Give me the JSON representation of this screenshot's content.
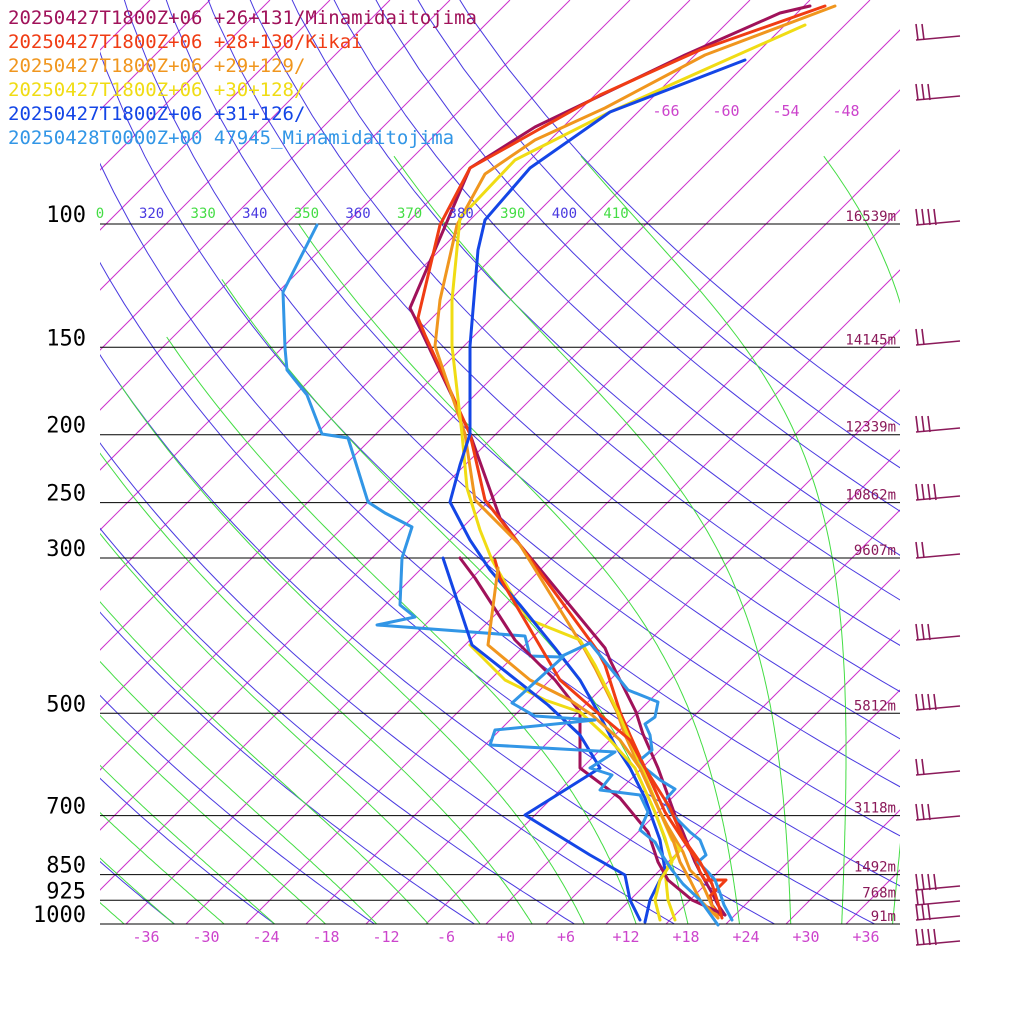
{
  "legend": [
    {
      "label": "20250427T1800Z+06 +26+131/Minamidaitojima",
      "color": "#a0125a"
    },
    {
      "label": "20250427T1800Z+06 +28+130/Kikai",
      "color": "#f03c14"
    },
    {
      "label": "20250427T1800Z+06 +29+129/",
      "color": "#f0961e"
    },
    {
      "label": "20250427T1800Z+06 +30+128/",
      "color": "#f0dc14"
    },
    {
      "label": "20250427T1800Z+06 +31+126/",
      "color": "#1446e6"
    },
    {
      "label": "20250428T0000Z+00 47945_Minamidaitojima",
      "color": "#3296e6"
    }
  ],
  "chart_data": {
    "type": "line",
    "xlabel": "",
    "ylabel": "",
    "pressure_levels": [
      {
        "p": 100,
        "label": "100",
        "height": "16539m"
      },
      {
        "p": 150,
        "label": "150",
        "height": "14145m"
      },
      {
        "p": 200,
        "label": "200",
        "height": "12339m"
      },
      {
        "p": 250,
        "label": "250",
        "height": "10862m"
      },
      {
        "p": 300,
        "label": "300",
        "height": "9607m"
      },
      {
        "p": 500,
        "label": "500",
        "height": "5812m"
      },
      {
        "p": 700,
        "label": "700",
        "height": "3118m"
      },
      {
        "p": 850,
        "label": "850",
        "height": "1492m"
      },
      {
        "p": 925,
        "label": "925",
        "height": "768m"
      },
      {
        "p": 1000,
        "label": "1000",
        "height": "91m"
      }
    ],
    "temperature_ticks": [
      "-36",
      "-30",
      "-24",
      "-18",
      "-12",
      "-6",
      "+0",
      "+6",
      "+12",
      "+18",
      "+24",
      "+30",
      "+36"
    ],
    "theta_labels": [
      "0",
      "320",
      "330",
      "340",
      "350",
      "360",
      "370",
      "380",
      "390",
      "400",
      "410"
    ],
    "mixing_ratio_labels": [
      "-66",
      "-60",
      "-54",
      "-48"
    ],
    "colors": {
      "isotherm": "#cc33cc",
      "dry_adiabat": "#4a3ae0",
      "moist_adiabat": "#44dd44",
      "isobar": "#000000",
      "wind_barb": "#8b1a5a"
    },
    "series": [
      {
        "name": "20250427T1800Z+06 +26+131/Minamidaitojima",
        "color": "#a0125a",
        "points": [
          [
            2,
            7
          ],
          [
            810,
            6
          ],
          [
            780,
            13
          ],
          [
            685,
            55
          ],
          [
            535,
            127
          ],
          [
            470,
            168
          ],
          [
            410,
            308
          ],
          [
            415,
            318
          ],
          [
            470,
            434
          ],
          [
            500,
            518
          ],
          [
            520,
            545
          ],
          [
            605,
            648
          ],
          [
            610,
            660
          ],
          [
            636,
            712
          ],
          [
            643,
            734
          ],
          [
            658,
            768
          ],
          [
            675,
            815
          ],
          [
            682,
            830
          ],
          [
            695,
            862
          ],
          [
            700,
            872
          ],
          [
            712,
            893
          ],
          [
            718,
            905
          ],
          [
            725,
            915
          ]
        ]
      },
      {
        "name": "20250427T1800Z+06 +28+130/Kikai",
        "color": "#f03c14",
        "points": [
          [
            2,
            7
          ],
          [
            825,
            6
          ],
          [
            700,
            50
          ],
          [
            600,
            95
          ],
          [
            520,
            140
          ],
          [
            470,
            168
          ],
          [
            440,
            225
          ],
          [
            418,
            318
          ],
          [
            425,
            335
          ],
          [
            470,
            434
          ],
          [
            485,
            500
          ],
          [
            520,
            545
          ],
          [
            597,
            650
          ],
          [
            605,
            665
          ],
          [
            620,
            712
          ],
          [
            630,
            735
          ],
          [
            645,
            768
          ],
          [
            665,
            812
          ],
          [
            695,
            858
          ],
          [
            700,
            872
          ],
          [
            705,
            880
          ],
          [
            726,
            880
          ],
          [
            710,
            896
          ],
          [
            712,
            905
          ],
          [
            720,
            915
          ]
        ]
      },
      {
        "name": "20250427T1800Z+06 +29+129/",
        "color": "#f0961e",
        "points": [
          [
            2,
            7
          ],
          [
            835,
            6
          ],
          [
            705,
            55
          ],
          [
            605,
            108
          ],
          [
            535,
            140
          ],
          [
            485,
            174
          ],
          [
            457,
            225
          ],
          [
            440,
            300
          ],
          [
            435,
            346
          ],
          [
            465,
            434
          ],
          [
            475,
            500
          ],
          [
            520,
            545
          ],
          [
            585,
            650
          ],
          [
            595,
            668
          ],
          [
            617,
            712
          ],
          [
            625,
            735
          ],
          [
            640,
            768
          ],
          [
            660,
            812
          ],
          [
            667,
            825
          ],
          [
            683,
            852
          ],
          [
            690,
            870
          ],
          [
            700,
            880
          ],
          [
            705,
            890
          ],
          [
            713,
            908
          ],
          [
            718,
            918
          ]
        ]
      },
      {
        "name": "20250427T1800Z+06 +30+128/",
        "color": "#f0dc14",
        "points": [
          [
            2,
            7
          ],
          [
            805,
            25
          ],
          [
            715,
            65
          ],
          [
            610,
            112
          ],
          [
            515,
            160
          ],
          [
            460,
            218
          ],
          [
            452,
            300
          ],
          [
            452,
            346
          ],
          [
            462,
            434
          ],
          [
            467,
            488
          ],
          [
            480,
            530
          ],
          [
            492,
            560
          ],
          [
            515,
            600
          ],
          [
            530,
            620
          ],
          [
            580,
            640
          ],
          [
            595,
            665
          ],
          [
            618,
            712
          ],
          [
            630,
            740
          ],
          [
            642,
            768
          ],
          [
            660,
            812
          ],
          [
            672,
            840
          ],
          [
            680,
            850
          ],
          [
            665,
            870
          ],
          [
            668,
            900
          ],
          [
            675,
            920
          ]
        ]
      },
      {
        "name": "20250427T1800Z+06 +31+126/",
        "color": "#1446e6",
        "points": [
          [
            2,
            7
          ],
          [
            745,
            60
          ],
          [
            610,
            112
          ],
          [
            530,
            168
          ],
          [
            485,
            220
          ],
          [
            478,
            250
          ],
          [
            470,
            346
          ],
          [
            470,
            434
          ],
          [
            460,
            465
          ],
          [
            450,
            502
          ],
          [
            470,
            540
          ],
          [
            490,
            570
          ],
          [
            520,
            605
          ],
          [
            555,
            648
          ],
          [
            580,
            680
          ],
          [
            598,
            712
          ],
          [
            615,
            745
          ],
          [
            630,
            768
          ],
          [
            645,
            798
          ],
          [
            660,
            840
          ],
          [
            665,
            870
          ],
          [
            650,
            900
          ],
          [
            645,
            922
          ]
        ]
      },
      {
        "name": "20250428T0000Z+00 47945_Minamidaitojima",
        "color": "#3296e6",
        "points": [
          [
            2,
            7
          ],
          [
            317,
            225
          ],
          [
            283,
            292
          ],
          [
            285,
            348
          ],
          [
            287,
            370
          ],
          [
            307,
            395
          ],
          [
            322,
            434
          ],
          [
            348,
            438
          ],
          [
            368,
            502
          ],
          [
            385,
            513
          ],
          [
            412,
            527
          ],
          [
            402,
            558
          ],
          [
            400,
            605
          ],
          [
            415,
            617
          ],
          [
            377,
            625
          ],
          [
            525,
            636
          ],
          [
            530,
            656
          ],
          [
            560,
            657
          ],
          [
            590,
            643
          ],
          [
            628,
            690
          ],
          [
            658,
            702
          ],
          [
            655,
            717
          ],
          [
            645,
            724
          ],
          [
            650,
            735
          ],
          [
            652,
            750
          ],
          [
            640,
            760
          ],
          [
            645,
            768
          ],
          [
            660,
            780
          ],
          [
            675,
            789
          ],
          [
            665,
            800
          ],
          [
            670,
            812
          ],
          [
            680,
            822
          ],
          [
            690,
            832
          ],
          [
            700,
            840
          ],
          [
            706,
            855
          ],
          [
            698,
            862
          ],
          [
            708,
            872
          ],
          [
            715,
            880
          ],
          [
            720,
            893
          ],
          [
            724,
            905
          ],
          [
            732,
            920
          ]
        ]
      },
      {
        "name": "20250427T1800Z+06 +26+131/Minamidaitojima dewpoint",
        "color": "#a0125a",
        "points": [
          [
            2,
            7
          ],
          [
            460,
            558
          ],
          [
            475,
            578
          ],
          [
            515,
            640
          ],
          [
            555,
            680
          ],
          [
            580,
            712
          ],
          [
            580,
            768
          ],
          [
            620,
            798
          ],
          [
            648,
            832
          ],
          [
            658,
            862
          ],
          [
            668,
            880
          ],
          [
            692,
            900
          ],
          [
            725,
            915
          ]
        ]
      },
      {
        "name": "20250427T1800Z+06 +28+130/Kikai dewpoint",
        "color": "#f03c14",
        "points": [
          [
            2,
            7
          ],
          [
            495,
            560
          ],
          [
            500,
            578
          ],
          [
            560,
            680
          ],
          [
            592,
            708
          ],
          [
            630,
            740
          ],
          [
            645,
            768
          ],
          [
            670,
            808
          ],
          [
            683,
            838
          ],
          [
            700,
            862
          ],
          [
            712,
            884
          ],
          [
            718,
            903
          ],
          [
            722,
            918
          ]
        ]
      },
      {
        "name": "20250427T1800Z+06 +29+129/ dewpoint",
        "color": "#f0961e",
        "points": [
          [
            2,
            7
          ],
          [
            498,
            568
          ],
          [
            488,
            645
          ],
          [
            530,
            680
          ],
          [
            570,
            700
          ],
          [
            592,
            715
          ],
          [
            620,
            740
          ],
          [
            640,
            768
          ],
          [
            660,
            812
          ],
          [
            673,
            840
          ],
          [
            680,
            862
          ],
          [
            690,
            880
          ],
          [
            700,
            900
          ],
          [
            718,
            918
          ]
        ]
      },
      {
        "name": "20250427T1800Z+06 +30+128/ dewpoint",
        "color": "#f0dc14",
        "points": [
          [
            2,
            7
          ],
          [
            470,
            645
          ],
          [
            505,
            680
          ],
          [
            545,
            700
          ],
          [
            580,
            712
          ],
          [
            610,
            740
          ],
          [
            635,
            768
          ],
          [
            655,
            812
          ],
          [
            665,
            838
          ],
          [
            672,
            862
          ],
          [
            660,
            880
          ],
          [
            655,
            900
          ],
          [
            660,
            920
          ]
        ]
      },
      {
        "name": "20250427T1800Z+06 +31+126/ dewpoint",
        "color": "#1446e6",
        "points": [
          [
            2,
            7
          ],
          [
            443,
            558
          ],
          [
            472,
            645
          ],
          [
            548,
            705
          ],
          [
            580,
            735
          ],
          [
            600,
            768
          ],
          [
            525,
            815
          ],
          [
            590,
            855
          ],
          [
            625,
            875
          ],
          [
            630,
            900
          ],
          [
            640,
            920
          ]
        ]
      },
      {
        "name": "20250428T0000Z+00 47945_Minamidaitojima dewpoint",
        "color": "#3296e6",
        "points": [
          [
            2,
            7
          ],
          [
            563,
            657
          ],
          [
            512,
            703
          ],
          [
            535,
            716
          ],
          [
            595,
            720
          ],
          [
            495,
            730
          ],
          [
            490,
            745
          ],
          [
            615,
            752
          ],
          [
            590,
            768
          ],
          [
            612,
            775
          ],
          [
            600,
            790
          ],
          [
            640,
            795
          ],
          [
            648,
            812
          ],
          [
            640,
            830
          ],
          [
            655,
            842
          ],
          [
            662,
            855
          ],
          [
            672,
            870
          ],
          [
            683,
            884
          ],
          [
            700,
            900
          ],
          [
            718,
            925
          ]
        ]
      }
    ],
    "wind_barbs_pressure": [
      40,
      100,
      225,
      345,
      432,
      500,
      558,
      640,
      710,
      775,
      820,
      890,
      905,
      920,
      945
    ]
  }
}
